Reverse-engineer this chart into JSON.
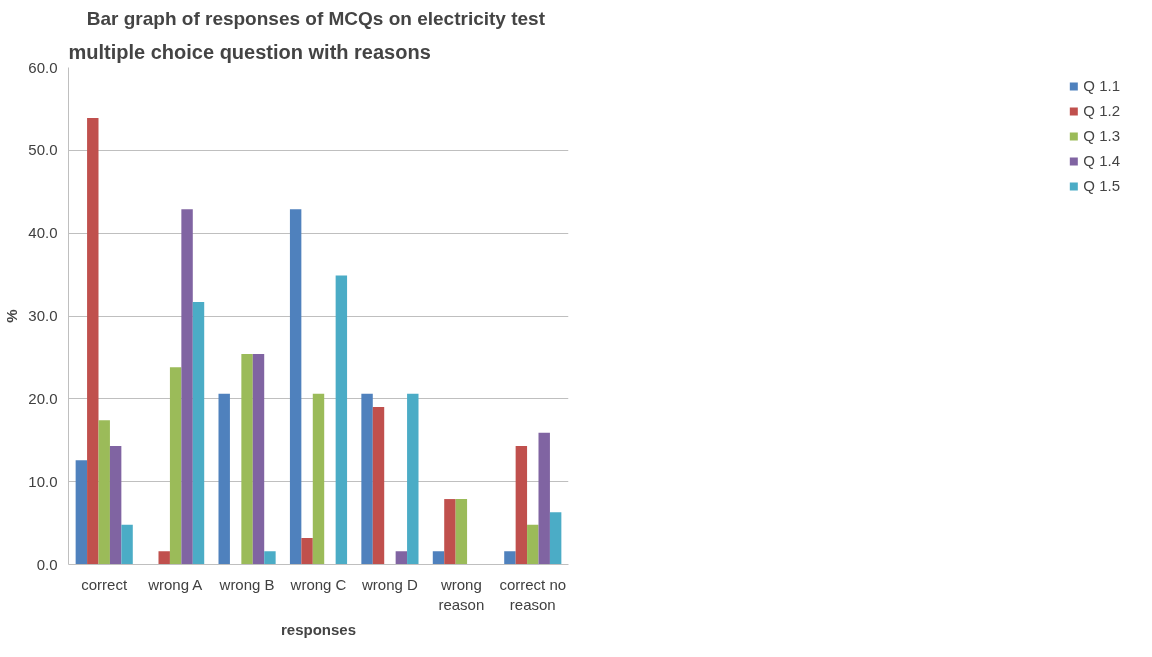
{
  "chart_data": {
    "type": "bar",
    "title": "Bar graph of responses  of MCQs on electricity test",
    "xlabel": "responses",
    "ylabel": "%",
    "annotations": [
      "multiple choice question with reasons"
    ],
    "categories": [
      "correct",
      "wrong A",
      "wrong B",
      "wrong C",
      "wrong D",
      "wrong reason",
      "correct no reason"
    ],
    "series": [
      {
        "name": "Q 1.1",
        "color": "#4f81bd",
        "values": [
          12.6,
          0,
          20.6,
          42.9,
          20.6,
          1.6,
          1.6
        ]
      },
      {
        "name": "Q 1.2",
        "color": "#c0504d",
        "values": [
          53.9,
          1.6,
          0,
          3.2,
          19.0,
          7.9,
          14.3
        ]
      },
      {
        "name": "Q 1.3",
        "color": "#9bbb59",
        "values": [
          17.4,
          23.8,
          25.4,
          20.6,
          0,
          7.9,
          4.8
        ]
      },
      {
        "name": "Q 1.4",
        "color": "#8064a2",
        "values": [
          14.3,
          42.9,
          25.4,
          0,
          1.6,
          0,
          15.9
        ]
      },
      {
        "name": "Q 1.5",
        "color": "#4bacc6",
        "values": [
          4.8,
          31.7,
          1.6,
          34.9,
          20.6,
          0,
          6.3
        ]
      }
    ],
    "ylim": [
      0,
      60
    ],
    "yticks": [
      {
        "value": 0,
        "label": "0.0"
      },
      {
        "value": 10,
        "label": "10.0"
      },
      {
        "value": 20,
        "label": "20.0"
      },
      {
        "value": 30,
        "label": "30.0"
      },
      {
        "value": 40,
        "label": "40.0"
      },
      {
        "value": 50,
        "label": "50.0"
      },
      {
        "value": 60,
        "label": "60.0"
      }
    ],
    "grid": "y",
    "legend": "right"
  }
}
